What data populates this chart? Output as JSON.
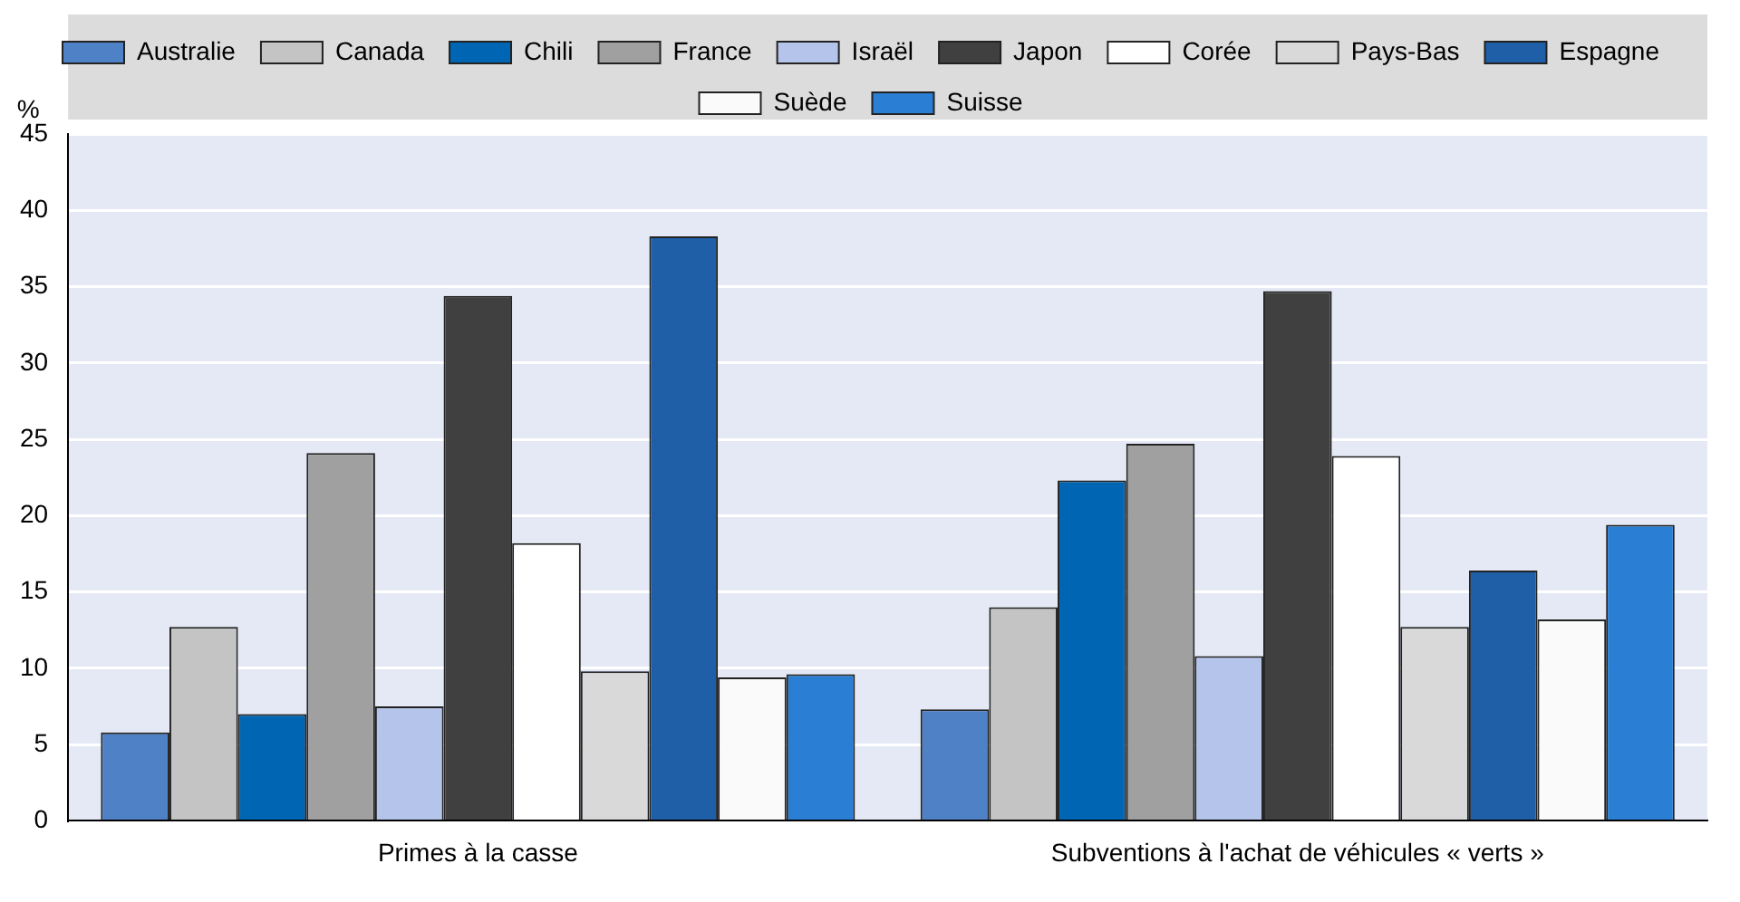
{
  "chart_data": {
    "type": "bar",
    "ylabel": "%",
    "categories": [
      "Primes à la casse",
      "Subventions à l'achat de véhicules « verts »"
    ],
    "series": [
      {
        "name": "Australie",
        "color": "#4f81c7",
        "values": [
          5.8,
          7.3
        ]
      },
      {
        "name": "Canada",
        "color": "#c4c4c4",
        "values": [
          12.7,
          14.0
        ]
      },
      {
        "name": "Chili",
        "color": "#0066b3",
        "values": [
          7.0,
          22.3
        ]
      },
      {
        "name": "France",
        "color": "#a0a0a0",
        "values": [
          24.1,
          24.7
        ]
      },
      {
        "name": "Israël",
        "color": "#b4c4ea",
        "values": [
          7.5,
          10.8
        ]
      },
      {
        "name": "Japon",
        "color": "#404040",
        "values": [
          34.4,
          34.7
        ]
      },
      {
        "name": "Corée",
        "color": "#ffffff",
        "values": [
          18.2,
          23.9
        ]
      },
      {
        "name": "Pays-Bas",
        "color": "#d9d9d9",
        "values": [
          9.8,
          12.7
        ]
      },
      {
        "name": "Espagne",
        "color": "#1f5fa8",
        "values": [
          38.3,
          16.4
        ]
      },
      {
        "name": "Suède",
        "color": "#fafafa",
        "values": [
          9.4,
          13.2
        ]
      },
      {
        "name": "Suisse",
        "color": "#2a7fd4",
        "values": [
          9.6,
          19.4
        ]
      }
    ],
    "ylim": [
      0,
      45
    ],
    "yticks": [
      0,
      5,
      10,
      15,
      20,
      25,
      30,
      35,
      40,
      45
    ],
    "grid": "y",
    "legend": "top"
  }
}
